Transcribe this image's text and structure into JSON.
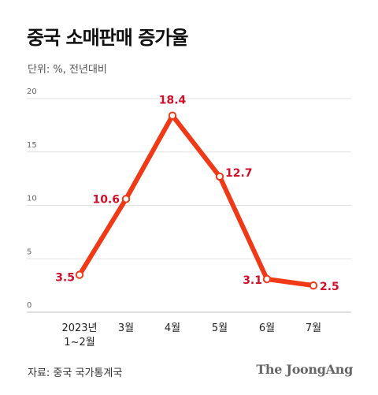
{
  "title": "중국 소매판매 증가율",
  "unit_label": "단위: %, 전년대비",
  "source": "자료: 중국 국가통계국",
  "brand": "The JoongAng",
  "colors": {
    "line": "#f03a17",
    "label": "#d0102b",
    "grid": "#e2e2e2"
  },
  "chart_data": {
    "type": "line",
    "categories": [
      "2023년\n1~2월",
      "3월",
      "4월",
      "5월",
      "6월",
      "7월"
    ],
    "series": [
      {
        "values": [
          3.5,
          10.6,
          18.4,
          12.7,
          3.1,
          2.5
        ]
      }
    ],
    "data_labels": [
      "3.5",
      "10.6",
      "18.4",
      "12.7",
      "3.1",
      "2.5"
    ],
    "y_ticks": [
      0,
      5,
      10,
      15,
      20
    ],
    "ylim": [
      0,
      20
    ],
    "grid": true
  }
}
